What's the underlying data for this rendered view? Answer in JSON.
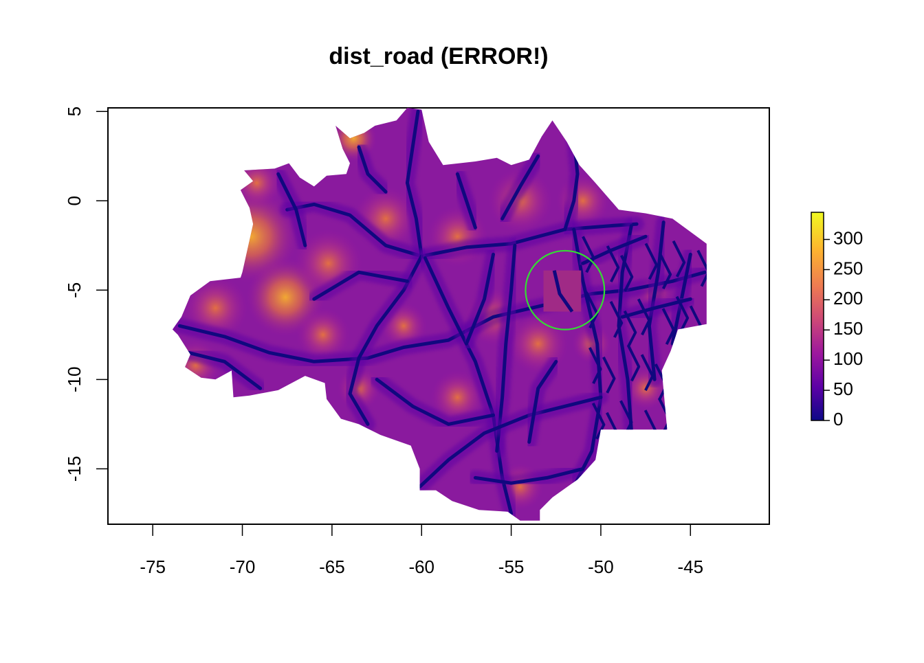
{
  "title": "dist_road (ERROR!)",
  "chart_data": {
    "type": "heatmap",
    "title": "dist_road (ERROR!)",
    "xlabel": "",
    "ylabel": "",
    "xlim": [
      -77.5,
      -40.6
    ],
    "ylim": [
      -18.1,
      5.2
    ],
    "x_ticks": [
      -75,
      -70,
      -65,
      -60,
      -55,
      -50,
      -45
    ],
    "x_tick_labels": [
      "-75",
      "-70",
      "-65",
      "-60",
      "-55",
      "-50",
      "-45"
    ],
    "y_ticks": [
      5,
      0,
      -5,
      -10,
      -15
    ],
    "y_tick_labels": [
      "5",
      "0",
      "-5",
      "-10",
      "-15"
    ],
    "grid": false,
    "legend": {
      "placement": "right",
      "min": 0,
      "max": 345,
      "ticks": [
        0,
        50,
        100,
        150,
        200,
        250,
        300
      ],
      "tick_labels": [
        "0",
        "50",
        "100",
        "150",
        "200",
        "250",
        "300"
      ],
      "colors": [
        "#0d0887",
        "#5c01a6",
        "#9c179e",
        "#cc4778",
        "#ed7953",
        "#fdb42f",
        "#f0f921"
      ]
    },
    "annotation": {
      "shape": "circle",
      "center": [
        -52,
        -5
      ],
      "radius_deg": 2.2,
      "color": "#33dd33"
    },
    "error_patch": {
      "x": [
        -53.2,
        -51.1
      ],
      "y": [
        -6.2,
        -3.9
      ]
    }
  }
}
